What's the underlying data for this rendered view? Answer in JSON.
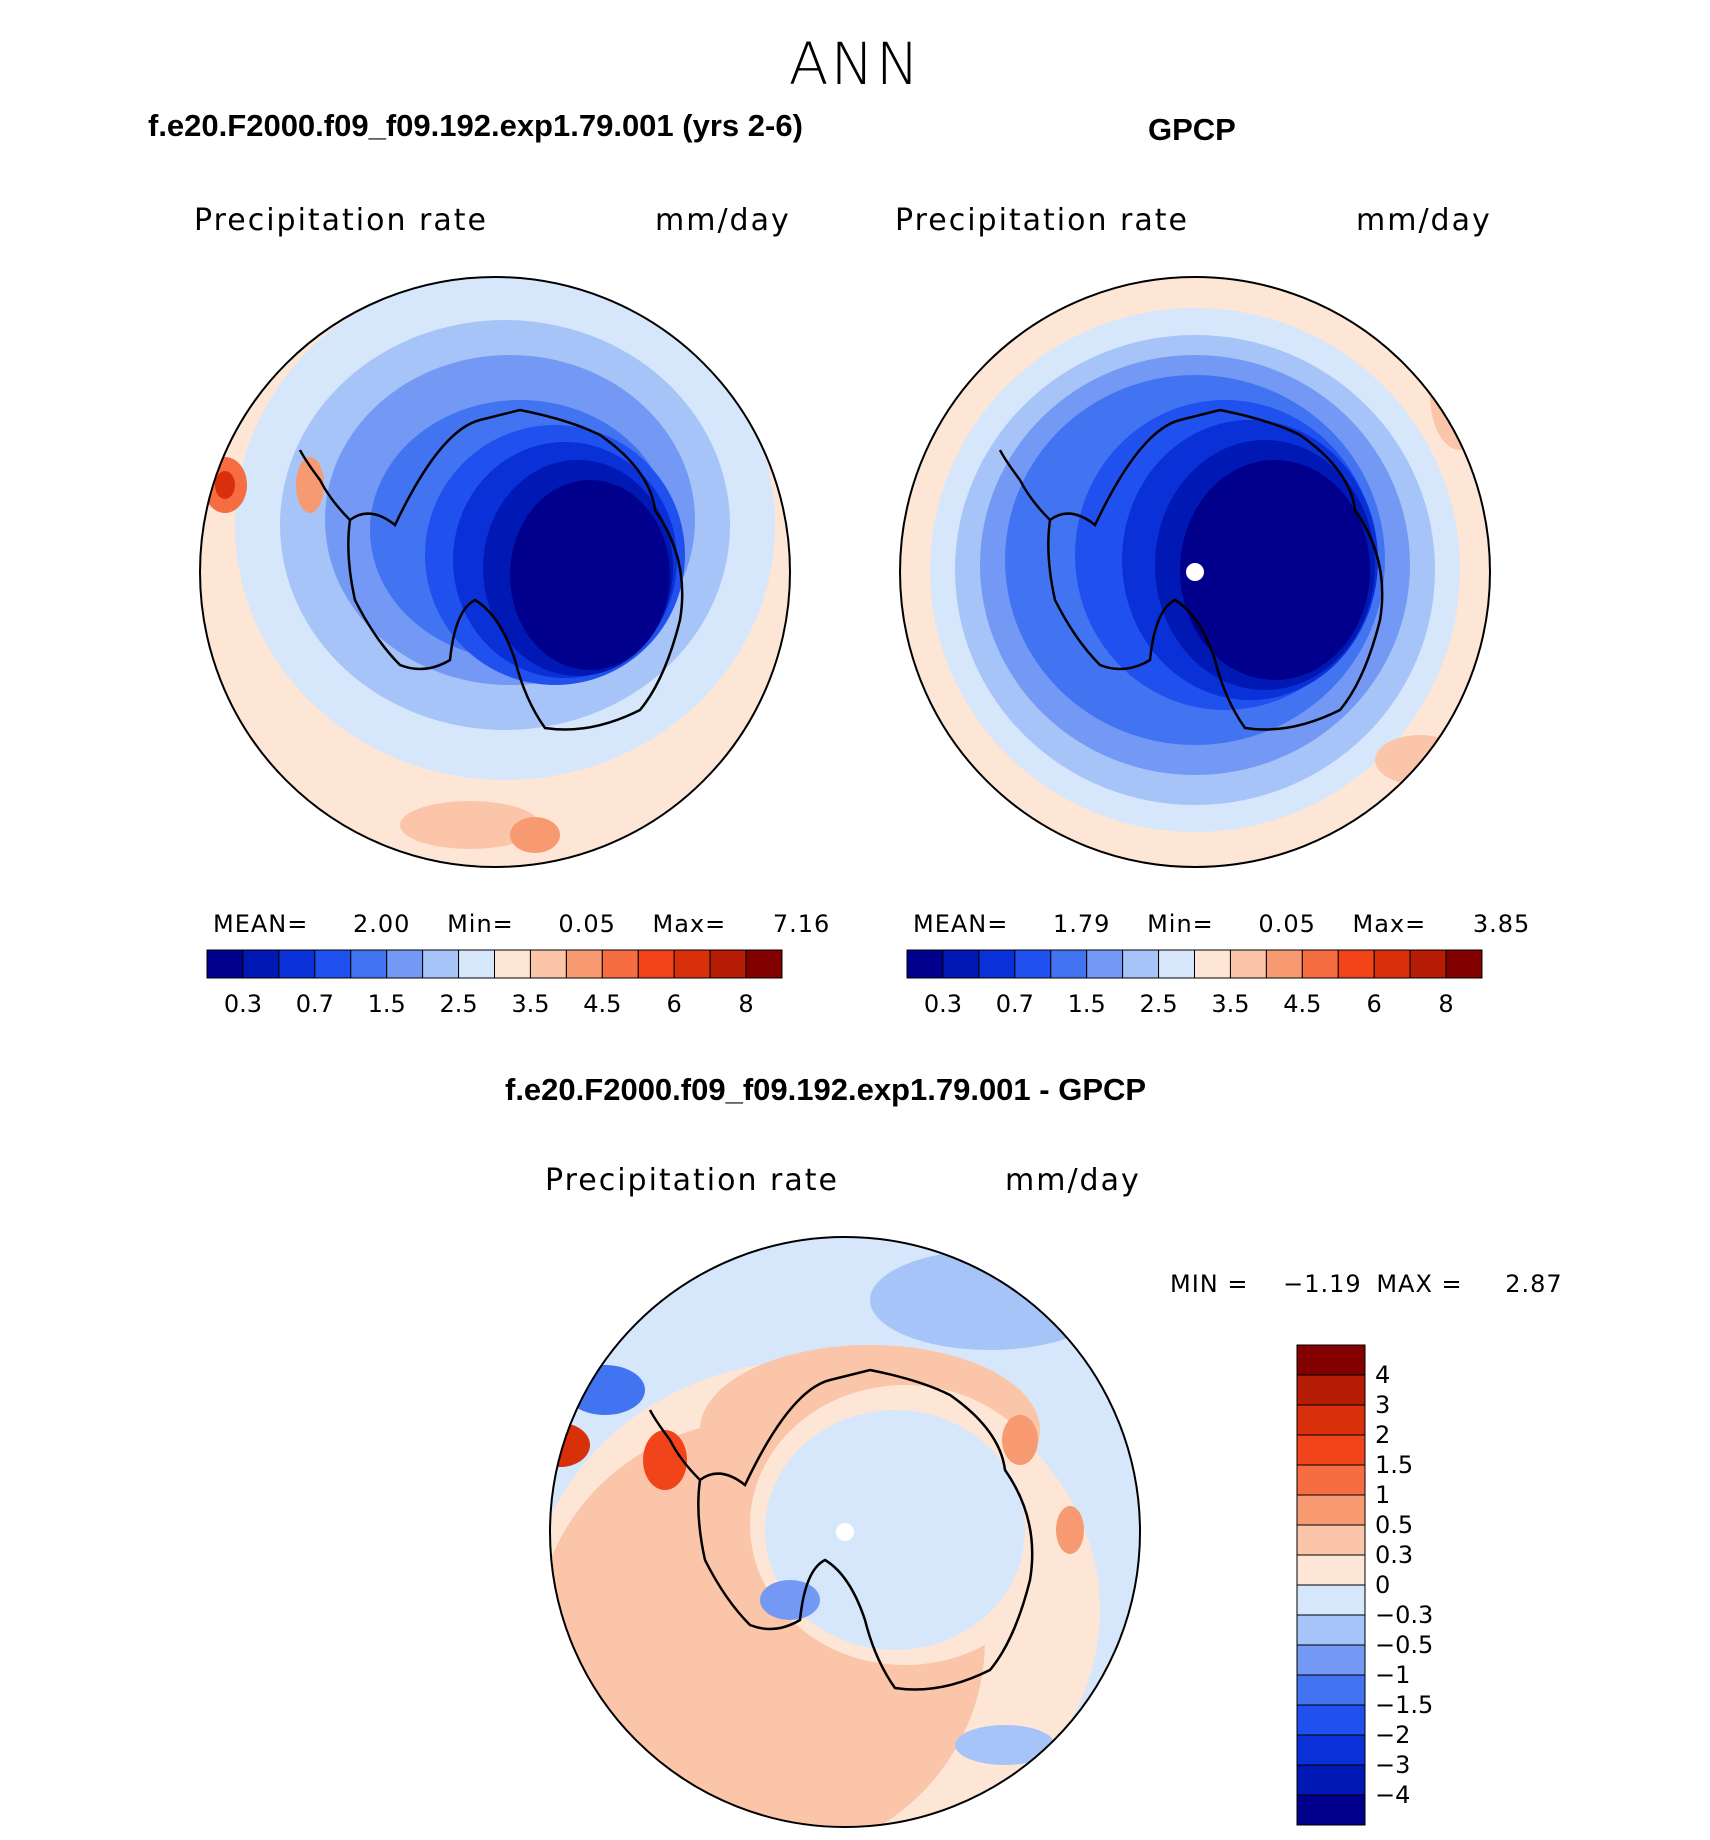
{
  "season": "ANN",
  "panels": [
    {
      "title": "f.e20.F2000.f09_f09.192.exp1.79.001 (yrs 2-6)",
      "field_label": "Precipitation rate",
      "units": "mm/day",
      "stats": {
        "mean_label": "MEAN=",
        "mean": "2.00",
        "min_label": "Min=",
        "min": "0.05",
        "max_label": "Max=",
        "max": "7.16"
      }
    },
    {
      "title": "GPCP",
      "field_label": "Precipitation rate",
      "units": "mm/day",
      "stats": {
        "mean_label": "MEAN=",
        "mean": "1.79",
        "min_label": "Min=",
        "min": "0.05",
        "max_label": "Max=",
        "max": "3.85"
      }
    }
  ],
  "abs_colorbar": {
    "colors": [
      "#00008c",
      "#0018b4",
      "#0a30d8",
      "#2050ee",
      "#4274f2",
      "#7399f4",
      "#a6c4f7",
      "#d6e6fb",
      "#fde6d6",
      "#fbc5a9",
      "#f79a72",
      "#f66d42",
      "#f2441a",
      "#d8300a",
      "#b41c05",
      "#820000"
    ],
    "tick_labels": [
      "0.3",
      "0.7",
      "1.5",
      "2.5",
      "3.5",
      "4.5",
      "6",
      "8"
    ]
  },
  "diff_panel": {
    "title": "f.e20.F2000.f09_f09.192.exp1.79.001 - GPCP",
    "field_label": "Precipitation rate",
    "units": "mm/day",
    "min_label": "MIN =",
    "min": "−1.19",
    "max_label": "MAX =",
    "max": "2.87"
  },
  "diff_colorbar": {
    "colors_top_to_bottom": [
      "#820000",
      "#b41c05",
      "#d8300a",
      "#f2441a",
      "#f66d42",
      "#f79a72",
      "#fbc5a9",
      "#fde6d6",
      "#d6e6fb",
      "#a6c4f7",
      "#7399f4",
      "#4274f2",
      "#2050ee",
      "#0a30d8",
      "#0018b4",
      "#00008c"
    ],
    "tick_labels": [
      "4",
      "3",
      "2",
      "1.5",
      "1",
      "0.5",
      "0.3",
      "0",
      "−0.3",
      "−0.5",
      "−1",
      "−1.5",
      "−2",
      "−3",
      "−4"
    ]
  }
}
